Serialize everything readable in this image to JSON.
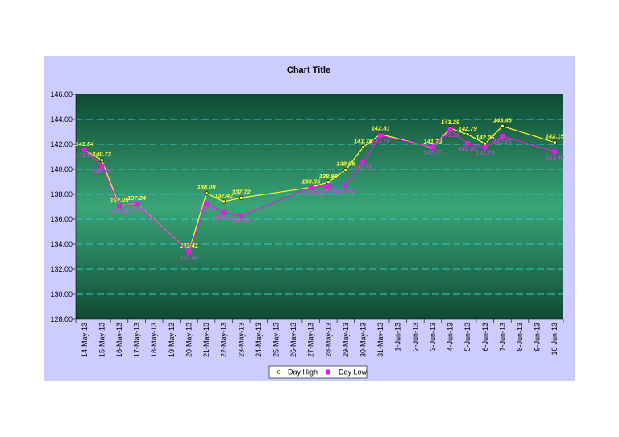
{
  "chart_data": {
    "type": "line",
    "title": "Chart Title",
    "xlabel": "",
    "ylabel": "",
    "ylim": [
      128,
      146
    ],
    "y_tick_step": 2,
    "y_tick_labels": [
      "128.00",
      "130.00",
      "132.00",
      "134.00",
      "136.00",
      "138.00",
      "140.00",
      "142.00",
      "144.00",
      "146.00"
    ],
    "categories": [
      "14-May-13",
      "15-May-13",
      "16-May-13",
      "17-May-13",
      "18-May-13",
      "19-May-13",
      "20-May-13",
      "21-May-13",
      "22-May-13",
      "23-May-13",
      "24-May-13",
      "25-May-13",
      "26-May-13",
      "27-May-13",
      "28-May-13",
      "29-May-13",
      "30-May-13",
      "31-May-13",
      "1-Jun-13",
      "2-Jun-13",
      "3-Jun-13",
      "4-Jun-13",
      "5-Jun-13",
      "6-Jun-13",
      "7-Jun-13",
      "8-Jun-13",
      "9-Jun-13",
      "10-Jun-13"
    ],
    "grid": true,
    "legend_position": "bottom",
    "series": [
      {
        "name": "Day High",
        "color": "#ffff33",
        "marker": "circle",
        "values": [
          141.54,
          140.73,
          137.05,
          137.24,
          null,
          null,
          133.41,
          138.09,
          137.42,
          137.72,
          null,
          null,
          null,
          138.55,
          138.98,
          139.96,
          141.76,
          142.81,
          null,
          null,
          141.73,
          143.29,
          142.79,
          142.05,
          143.46,
          null,
          null,
          142.15
        ],
        "labels": [
          "141.54",
          "140.73",
          "137.05",
          "137.24",
          "",
          "",
          "133.41",
          "138.09",
          "137.42",
          "137.72",
          "",
          "",
          "",
          "138.55",
          "138.98",
          "139.96",
          "141.76",
          "142.81",
          "",
          "",
          "141.73",
          "143.29",
          "142.79",
          "142.05",
          "143.46",
          "",
          "",
          "142.15"
        ]
      },
      {
        "name": "Day Low",
        "color": "#e619e6",
        "marker": "square",
        "values": [
          141.55,
          140.25,
          137.05,
          137.2,
          null,
          null,
          133.4,
          137.25,
          136.55,
          136.25,
          null,
          null,
          null,
          138.55,
          138.65,
          138.7,
          140.55,
          142.7,
          null,
          null,
          141.77,
          143.15,
          142.05,
          141.75,
          142.65,
          null,
          null,
          141.4
        ],
        "labels": [
          "141.55",
          "140.25",
          "137.05",
          "137.20",
          "",
          "",
          "133.40",
          "137.25",
          "136.55",
          "136.25",
          "",
          "",
          "",
          "138.55",
          "138.65",
          "138.70",
          "140.55",
          "142.70",
          "",
          "",
          "141.77",
          "143.15",
          "142.05",
          "141.75",
          "142.65",
          "",
          "",
          "141.40"
        ]
      }
    ]
  },
  "colors": {
    "outer_background": "#ccccff",
    "plot_gradient_top": "#0f4a33",
    "plot_gradient_mid": "#3aa578",
    "plot_gradient_bottom": "#0f4a33",
    "gridline": "#33cccc"
  }
}
